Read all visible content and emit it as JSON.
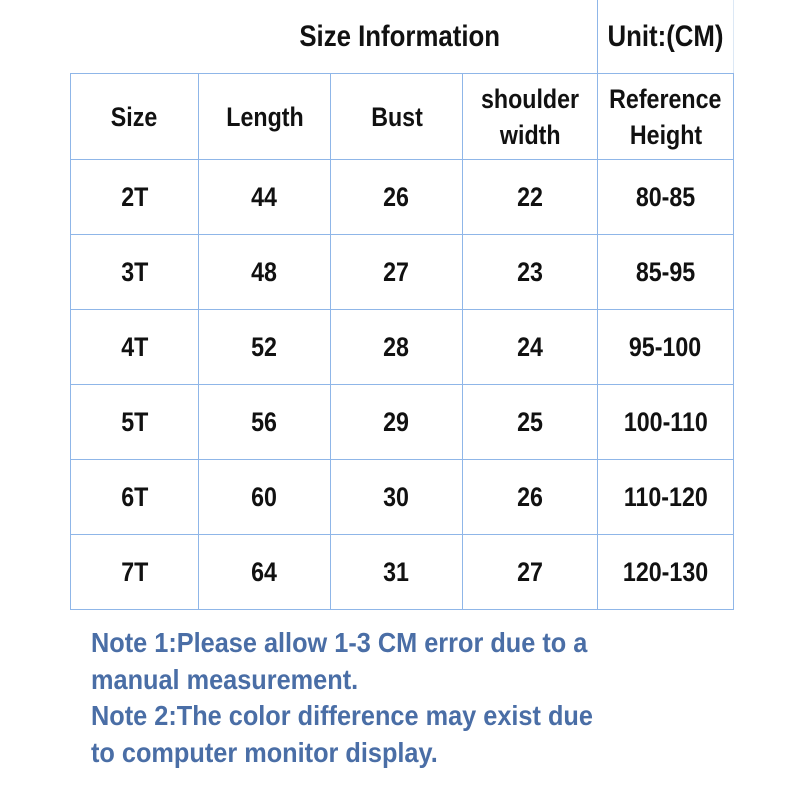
{
  "title": "Size Information",
  "unit": "Unit:(CM)",
  "columns": [
    "Size",
    "Length",
    "Bust",
    "shoulder",
    "width",
    "Reference",
    "Height"
  ],
  "rows": [
    [
      "2T",
      "44",
      "26",
      "22",
      "80-85"
    ],
    [
      "3T",
      "48",
      "27",
      "23",
      "85-95"
    ],
    [
      "4T",
      "52",
      "28",
      "24",
      "95-100"
    ],
    [
      "5T",
      "56",
      "29",
      "25",
      "100-110"
    ],
    [
      "6T",
      "60",
      "30",
      "26",
      "110-120"
    ],
    [
      "7T",
      "64",
      "31",
      "27",
      "120-130"
    ]
  ],
  "notes": {
    "line1": "Note 1:Please allow 1-3 CM error due to a",
    "line2": "manual measurement.",
    "line3": "Note 2:The color difference may exist due",
    "line4": "to computer monitor display."
  },
  "colors": {
    "border": "#8fb6e8",
    "note_text": "#4a6ea6"
  }
}
